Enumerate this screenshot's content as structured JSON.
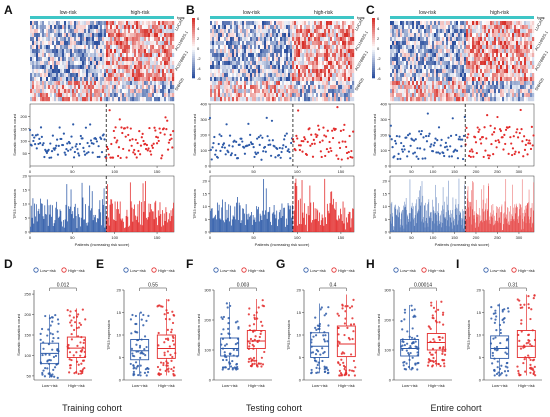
{
  "colors": {
    "low": "#2d5aa8",
    "high": "#e32b2b",
    "type_bar": "#3ec6c6",
    "heat_low": "#2b4f9e",
    "heat_mid": "#ffffff",
    "heat_high": "#d7302a"
  },
  "panel_letters": [
    "A",
    "B",
    "C",
    "D",
    "E",
    "F",
    "G",
    "H",
    "I"
  ],
  "cohorts": [
    "Training cohort",
    "Testing cohort",
    "Entire cohort"
  ],
  "chart_data": [
    {
      "type": "heatmap",
      "panel": "A",
      "group_labels": [
        "low-risk",
        "high-risk"
      ],
      "type_label": "type",
      "rows": [
        "LUCAT1",
        "AC116025.1",
        "AC078883.1",
        "SNHG5"
      ],
      "legend_ticks": [
        "6",
        "4",
        "2",
        "0",
        "-2",
        "-4",
        "-6"
      ],
      "n_patients": 170,
      "cutoff_index": 90
    },
    {
      "type": "heatmap",
      "panel": "B",
      "group_labels": [
        "low-risk",
        "high-risk"
      ],
      "type_label": "type",
      "rows": [
        "LUCAT1",
        "AC116025.1",
        "AC078883.1",
        "SNHG5"
      ],
      "legend_ticks": [
        "6",
        "4",
        "2",
        "0",
        "-2",
        "-4",
        "-6"
      ],
      "n_patients": 165,
      "cutoff_index": 95
    },
    {
      "type": "heatmap",
      "panel": "C",
      "group_labels": [
        "low-risk",
        "high-risk"
      ],
      "type_label": "type",
      "rows": [
        "LUCAT1",
        "AC116025.1",
        "AC078883.1",
        "SNHG5"
      ],
      "legend_ticks": [
        "6",
        "4",
        "2",
        "0",
        "-2",
        "-4",
        "-6"
      ],
      "n_patients": 335,
      "cutoff_index": 175
    },
    {
      "type": "scatter",
      "panel": "A",
      "ylabel": "Somatic mutation count",
      "xlabel": "",
      "xlim": [
        0,
        170
      ],
      "ylim": [
        0,
        250
      ],
      "yticks": [
        50,
        100,
        150,
        200
      ],
      "xticks": [
        0,
        50,
        100,
        150
      ],
      "cutoff": 90,
      "n": 170,
      "min_val": 30,
      "max_val": 225
    },
    {
      "type": "scatter",
      "panel": "B",
      "ylabel": "Somatic mutation count",
      "xlabel": "",
      "xlim": [
        0,
        165
      ],
      "ylim": [
        0,
        400
      ],
      "yticks": [
        0,
        100,
        200,
        300,
        400
      ],
      "xticks": [
        0,
        50,
        100,
        150
      ],
      "cutoff": 95,
      "n": 165,
      "min_val": 40,
      "max_val": 380
    },
    {
      "type": "scatter",
      "panel": "C",
      "ylabel": "Somatic mutation count",
      "xlabel": "",
      "xlim": [
        0,
        335
      ],
      "ylim": [
        0,
        400
      ],
      "yticks": [
        0,
        100,
        200,
        300,
        400
      ],
      "xticks": [
        0,
        50,
        100,
        150,
        200,
        250,
        300
      ],
      "cutoff": 175,
      "n": 335,
      "min_val": 40,
      "max_val": 380
    },
    {
      "type": "bar",
      "panel": "A",
      "ylabel": "TP53 expression",
      "xlabel": "Patients (increasing risk score)",
      "xlim": [
        0,
        170
      ],
      "ylim": [
        0,
        20
      ],
      "yticks": [
        0,
        5,
        10,
        15,
        20
      ],
      "xticks": [
        0,
        50,
        100,
        150
      ],
      "cutoff": 90,
      "n": 170,
      "max_val": 19
    },
    {
      "type": "bar",
      "panel": "B",
      "ylabel": "TP53 expression",
      "xlabel": "Patients (increasing risk score)",
      "xlim": [
        0,
        165
      ],
      "ylim": [
        0,
        22
      ],
      "yticks": [
        0,
        5,
        10,
        15,
        20
      ],
      "xticks": [
        0,
        50,
        100,
        150
      ],
      "cutoff": 95,
      "n": 165,
      "max_val": 21
    },
    {
      "type": "bar",
      "panel": "C",
      "ylabel": "TP53 expression",
      "xlabel": "Patients (increasing risk score)",
      "xlim": [
        0,
        335
      ],
      "ylim": [
        0,
        22
      ],
      "yticks": [
        0,
        5,
        10,
        15,
        20
      ],
      "xticks": [
        0,
        50,
        100,
        150,
        200,
        250,
        300
      ],
      "cutoff": 175,
      "n": 335,
      "max_val": 21
    },
    {
      "type": "box",
      "panel": "D",
      "ylabel": "Somatic mutation count",
      "categories": [
        "Low−risk",
        "High−risk"
      ],
      "legend": [
        "Low−risk",
        "High−risk"
      ],
      "pvalue": "0.012",
      "ylim": [
        40,
        260
      ],
      "yticks": [
        50,
        100,
        150,
        200,
        250
      ],
      "box": [
        {
          "q1": 80,
          "median": 105,
          "q3": 130,
          "low": 45,
          "high": 200
        },
        {
          "q1": 95,
          "median": 118,
          "q3": 145,
          "low": 55,
          "high": 215
        }
      ]
    },
    {
      "type": "box",
      "panel": "E",
      "ylabel": "TP53 expression",
      "categories": [
        "Low−risk",
        "High−risk"
      ],
      "legend": [
        "Low−risk",
        "High−risk"
      ],
      "pvalue": "0.55",
      "ylim": [
        0,
        20
      ],
      "yticks": [
        0,
        5,
        10,
        15,
        20
      ],
      "box": [
        {
          "q1": 4.5,
          "median": 6.5,
          "q3": 9,
          "low": 1,
          "high": 15
        },
        {
          "q1": 4.8,
          "median": 7,
          "q3": 10,
          "low": 1,
          "high": 18
        }
      ]
    },
    {
      "type": "box",
      "panel": "F",
      "ylabel": "Somatic mutation count",
      "categories": [
        "Low−risk",
        "High−risk"
      ],
      "legend": [
        "Low−risk",
        "High−risk"
      ],
      "pvalue": "0.003",
      "ylim": [
        0,
        300
      ],
      "yticks": [
        0,
        100,
        200,
        300
      ],
      "box": [
        {
          "q1": 80,
          "median": 105,
          "q3": 140,
          "low": 35,
          "high": 260
        },
        {
          "q1": 105,
          "median": 130,
          "q3": 165,
          "low": 45,
          "high": 270
        }
      ]
    },
    {
      "type": "box",
      "panel": "G",
      "ylabel": "TP53 expression",
      "categories": [
        "Low−risk",
        "High−risk"
      ],
      "legend": [
        "Low−risk",
        "High−risk"
      ],
      "pvalue": "0.4",
      "ylim": [
        0,
        20
      ],
      "yticks": [
        0,
        5,
        10,
        15,
        20
      ],
      "box": [
        {
          "q1": 5,
          "median": 7.5,
          "q3": 10.5,
          "low": 1.5,
          "high": 17
        },
        {
          "q1": 5.2,
          "median": 8,
          "q3": 12,
          "low": 1,
          "high": 19
        }
      ]
    },
    {
      "type": "box",
      "panel": "H",
      "ylabel": "Somatic mutation count",
      "categories": [
        "Low−risk",
        "High−risk"
      ],
      "legend": [
        "Low−risk",
        "High−risk"
      ],
      "pvalue": "0.00014",
      "ylim": [
        0,
        300
      ],
      "yticks": [
        0,
        100,
        200,
        300
      ],
      "box": [
        {
          "q1": 80,
          "median": 105,
          "q3": 135,
          "low": 35,
          "high": 250
        },
        {
          "q1": 100,
          "median": 125,
          "q3": 155,
          "low": 45,
          "high": 265
        }
      ]
    },
    {
      "type": "box",
      "panel": "I",
      "ylabel": "TP53 expression",
      "categories": [
        "Low−risk",
        "High−risk"
      ],
      "legend": [
        "Low−risk",
        "High−risk"
      ],
      "pvalue": "0.31",
      "ylim": [
        0,
        20
      ],
      "yticks": [
        0,
        5,
        10,
        15,
        20
      ],
      "box": [
        {
          "q1": 4.8,
          "median": 7,
          "q3": 9.8,
          "low": 1,
          "high": 17
        },
        {
          "q1": 5,
          "median": 7.5,
          "q3": 11,
          "low": 1,
          "high": 19
        }
      ]
    }
  ]
}
